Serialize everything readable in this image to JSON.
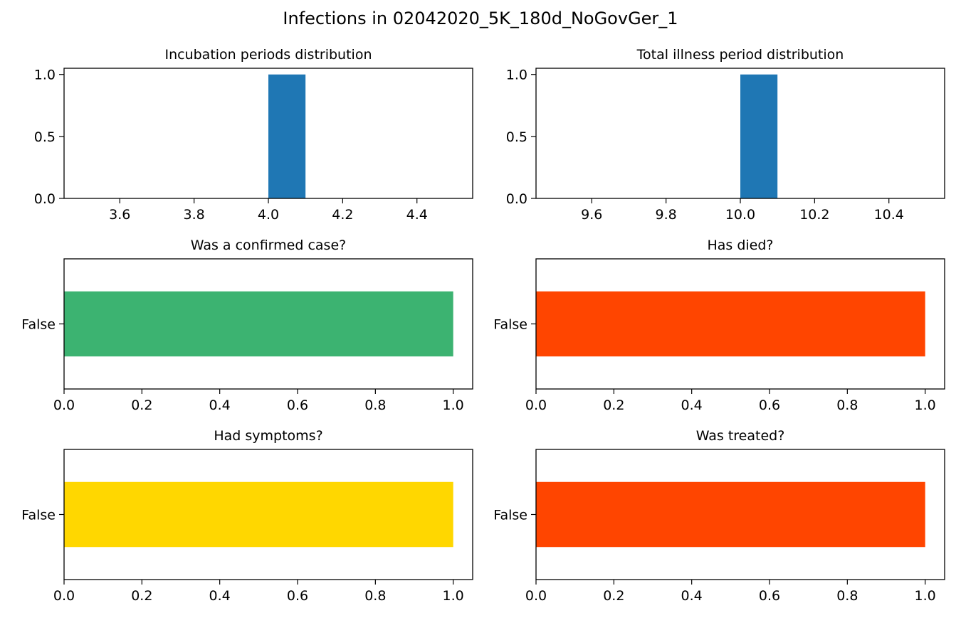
{
  "figure": {
    "title": "Infections in 02042020_5K_180d_NoGovGer_1"
  },
  "chart_data": [
    {
      "type": "bar",
      "title": "Incubation periods distribution",
      "orientation": "vertical",
      "bins": [
        {
          "x0": 4.0,
          "x1": 4.1,
          "count": 1.0
        }
      ],
      "xlim": [
        3.45,
        4.55
      ],
      "ylim": [
        0,
        1.05
      ],
      "xticks": [
        3.6,
        3.8,
        4.0,
        4.2,
        4.4
      ],
      "xtick_labels": [
        "3.6",
        "3.8",
        "4.0",
        "4.2",
        "4.4"
      ],
      "yticks": [
        0.0,
        0.5,
        1.0
      ],
      "ytick_labels": [
        "0.0",
        "0.5",
        "1.0"
      ],
      "color": "#1f77b4"
    },
    {
      "type": "bar",
      "title": "Total illness period distribution",
      "orientation": "vertical",
      "bins": [
        {
          "x0": 10.0,
          "x1": 10.1,
          "count": 1.0
        }
      ],
      "xlim": [
        9.45,
        10.55
      ],
      "ylim": [
        0,
        1.05
      ],
      "xticks": [
        9.6,
        9.8,
        10.0,
        10.2,
        10.4
      ],
      "xtick_labels": [
        "9.6",
        "9.8",
        "10.0",
        "10.2",
        "10.4"
      ],
      "yticks": [
        0.0,
        0.5,
        1.0
      ],
      "ytick_labels": [
        "0.0",
        "0.5",
        "1.0"
      ],
      "color": "#1f77b4"
    },
    {
      "type": "bar",
      "title": "Was a confirmed case?",
      "orientation": "horizontal",
      "categories": [
        "False"
      ],
      "values": [
        1.0
      ],
      "xlim": [
        0,
        1.05
      ],
      "xticks": [
        0.0,
        0.2,
        0.4,
        0.6,
        0.8,
        1.0
      ],
      "xtick_labels": [
        "0.0",
        "0.2",
        "0.4",
        "0.6",
        "0.8",
        "1.0"
      ],
      "color": "#3cb371"
    },
    {
      "type": "bar",
      "title": "Has died?",
      "orientation": "horizontal",
      "categories": [
        "False"
      ],
      "values": [
        1.0
      ],
      "xlim": [
        0,
        1.05
      ],
      "xticks": [
        0.0,
        0.2,
        0.4,
        0.6,
        0.8,
        1.0
      ],
      "xtick_labels": [
        "0.0",
        "0.2",
        "0.4",
        "0.6",
        "0.8",
        "1.0"
      ],
      "color": "#ff4500"
    },
    {
      "type": "bar",
      "title": "Had symptoms?",
      "orientation": "horizontal",
      "categories": [
        "False"
      ],
      "values": [
        1.0
      ],
      "xlim": [
        0,
        1.05
      ],
      "xticks": [
        0.0,
        0.2,
        0.4,
        0.6,
        0.8,
        1.0
      ],
      "xtick_labels": [
        "0.0",
        "0.2",
        "0.4",
        "0.6",
        "0.8",
        "1.0"
      ],
      "color": "#ffd700"
    },
    {
      "type": "bar",
      "title": "Was treated?",
      "orientation": "horizontal",
      "categories": [
        "False"
      ],
      "values": [
        1.0
      ],
      "xlim": [
        0,
        1.05
      ],
      "xticks": [
        0.0,
        0.2,
        0.4,
        0.6,
        0.8,
        1.0
      ],
      "xtick_labels": [
        "0.0",
        "0.2",
        "0.4",
        "0.6",
        "0.8",
        "1.0"
      ],
      "color": "#ff4500"
    }
  ]
}
